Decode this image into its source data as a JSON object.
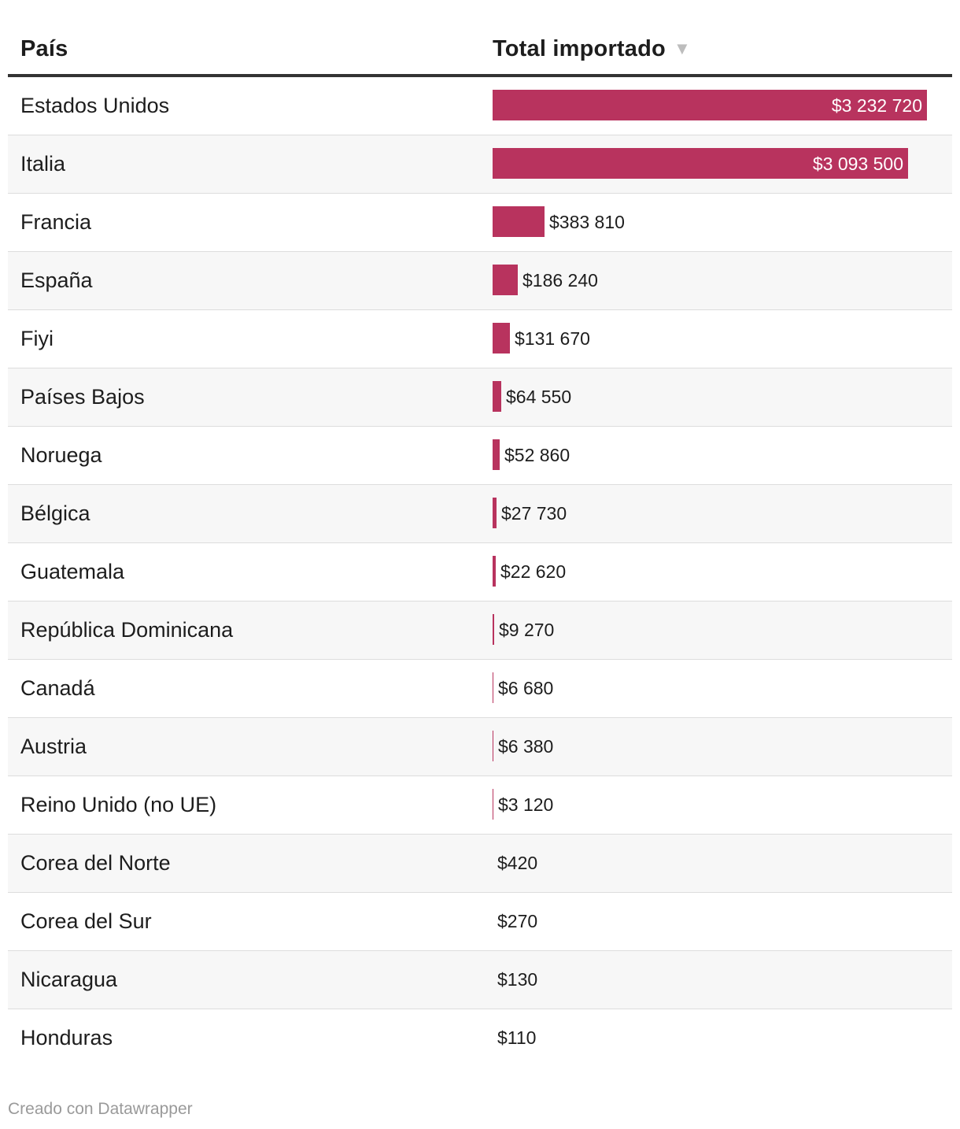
{
  "table": {
    "header": {
      "country": "País",
      "total": "Total importado",
      "sort_icon": "▼"
    }
  },
  "colors": {
    "bar": "#b8335e"
  },
  "chart_data": {
    "type": "bar",
    "orientation": "horizontal",
    "xlabel": "País",
    "ylabel": "Total importado",
    "ylim": [
      0,
      3232720
    ],
    "categories": [
      "Estados Unidos",
      "Italia",
      "Francia",
      "España",
      "Fiyi",
      "Países Bajos",
      "Noruega",
      "Bélgica",
      "Guatemala",
      "República Dominicana",
      "Canadá",
      "Austria",
      "Reino Unido (no UE)",
      "Corea del Norte",
      "Corea del Sur",
      "Nicaragua",
      "Honduras"
    ],
    "values": [
      3232720,
      3093500,
      383810,
      186240,
      131670,
      64550,
      52860,
      27730,
      22620,
      9270,
      6680,
      6380,
      3120,
      420,
      270,
      130,
      110
    ],
    "labels": [
      "$3 232 720",
      "$3 093 500",
      "$383 810",
      "$186 240",
      "$131 670",
      "$64 550",
      "$52 860",
      "$27 730",
      "$22 620",
      "$9 270",
      "$6 680",
      "$6 380",
      "$3 120",
      "$420",
      "$270",
      "$130",
      "$110"
    ]
  },
  "footer": {
    "credit": "Creado con Datawrapper"
  }
}
